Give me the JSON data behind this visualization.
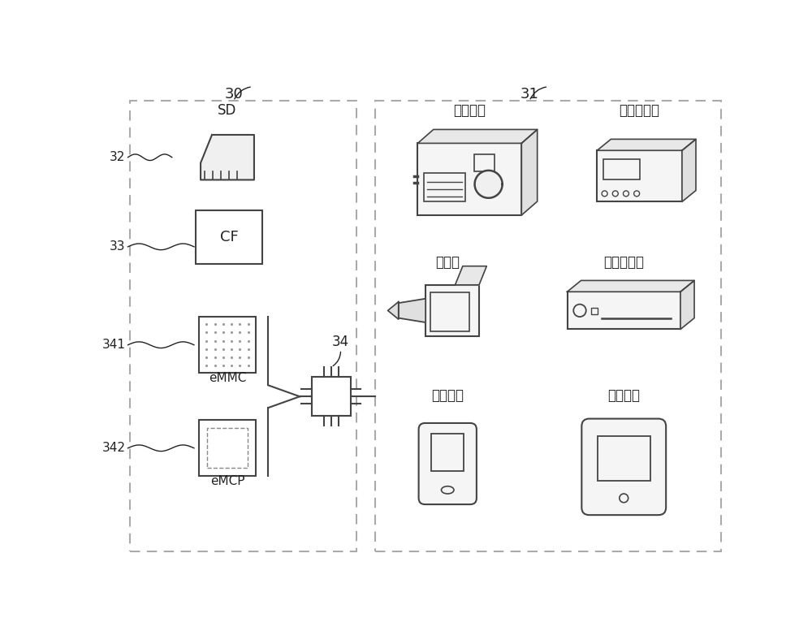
{
  "bg_color": "#ffffff",
  "line_color": "#444444",
  "dashed_color": "#aaaaaa",
  "text_color": "#222222",
  "label30": "30",
  "label31": "31",
  "label32": "32",
  "label33": "33",
  "label34": "34",
  "label341": "341",
  "label342": "342",
  "sd_label": "SD",
  "cf_label": "CF",
  "emmc_label": "eMMC",
  "emcp_label": "eMCP",
  "cam_label": "数字相机",
  "audio_label": "音频播放器",
  "video_label": "视频播放器",
  "camcorder_label": "摄影机",
  "comm_label": "通信装置",
  "tablet_label": "平板电脑"
}
